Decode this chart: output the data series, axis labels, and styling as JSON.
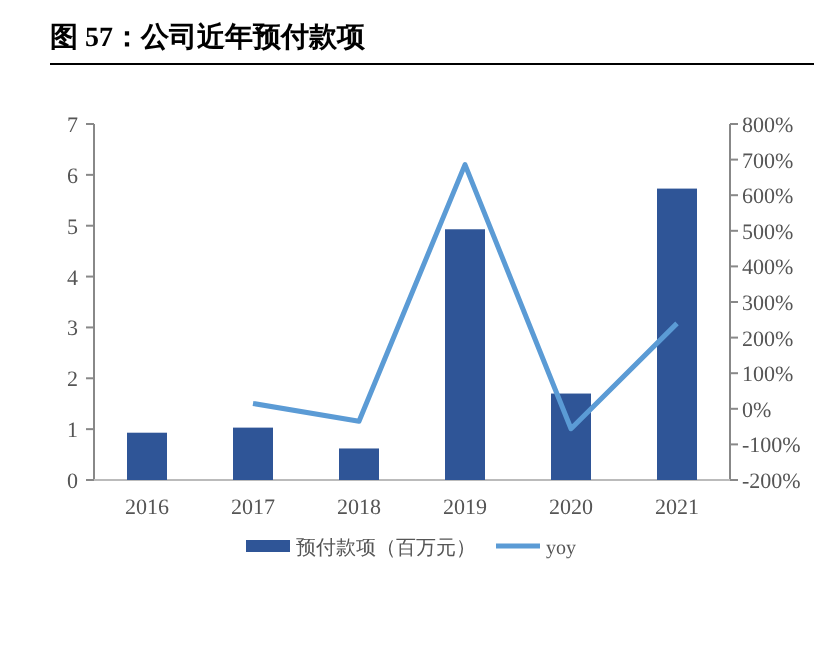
{
  "chart_data": {
    "type": "bar",
    "title": "图 57：公司近年预付款项",
    "categories": [
      "2016",
      "2017",
      "2018",
      "2019",
      "2020",
      "2021"
    ],
    "series": [
      {
        "name": "预付款项（百万元）",
        "color": "#2f5597",
        "values": [
          0.93,
          1.03,
          0.62,
          4.93,
          1.7,
          5.73
        ]
      },
      {
        "name": "yoy",
        "type": "line",
        "axis": "y2",
        "color": "#5b9bd5",
        "values": [
          null,
          15,
          -35,
          686,
          -56,
          240
        ]
      }
    ],
    "ylim": [
      0,
      7
    ],
    "yticks": [
      0,
      1,
      2,
      3,
      4,
      5,
      6,
      7
    ],
    "y2lim": [
      -200,
      800
    ],
    "y2ticks": [
      {
        "value": -200,
        "label": "-200%"
      },
      {
        "value": -100,
        "label": "-100%"
      },
      {
        "value": 0,
        "label": "0%"
      },
      {
        "value": 100,
        "label": "100%"
      },
      {
        "value": 200,
        "label": "200%"
      },
      {
        "value": 300,
        "label": "300%"
      },
      {
        "value": 400,
        "label": "400%"
      },
      {
        "value": 500,
        "label": "500%"
      },
      {
        "value": 600,
        "label": "600%"
      },
      {
        "value": 700,
        "label": "700%"
      },
      {
        "value": 800,
        "label": "800%"
      }
    ],
    "grid": false,
    "legend": "bottom",
    "marker": "none"
  }
}
